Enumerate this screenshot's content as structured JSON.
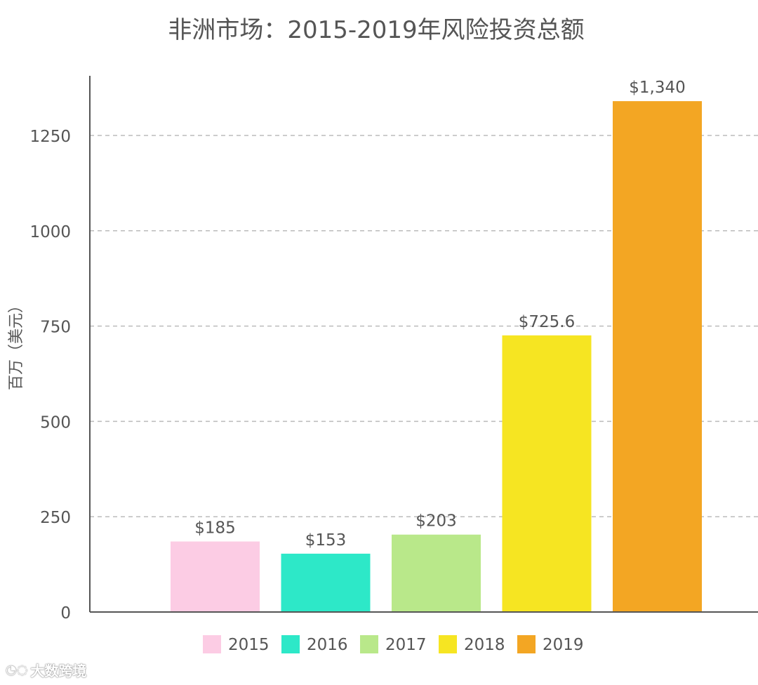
{
  "chart_data": {
    "type": "bar",
    "title": "非洲市场：2015-2019年风险投资总额",
    "ylabel": "百万（美元）",
    "xlabel": "",
    "categories": [
      "2015",
      "2016",
      "2017",
      "2018",
      "2019"
    ],
    "values": [
      185,
      153,
      203,
      725.6,
      1340
    ],
    "data_labels": [
      "$185",
      "$153",
      "$203",
      "$725.6",
      "$1,340"
    ],
    "colors": [
      "#fcccE4",
      "#2de8c8",
      "#b9e88a",
      "#f6e522",
      "#f3a623"
    ],
    "ylim": [
      0,
      1400
    ],
    "yticks": [
      0,
      250,
      500,
      750,
      1000,
      1250
    ],
    "grid": true,
    "legend_position": "bottom"
  },
  "watermark": {
    "text": "大数跨境",
    "icon": "watermark-logo-icon"
  }
}
